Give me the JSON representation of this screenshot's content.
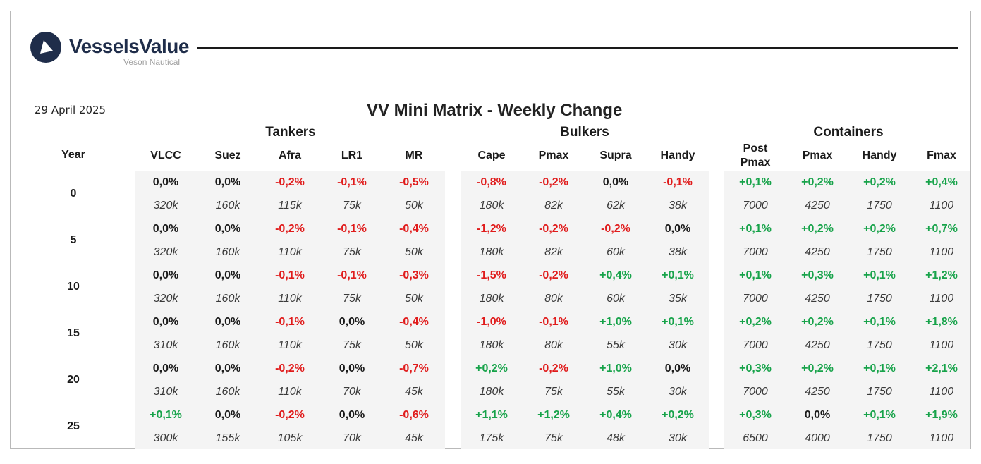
{
  "logo": {
    "name": "VesselsValue",
    "sub": "Veson Nautical"
  },
  "date": "29 April 2025",
  "title": "VV Mini Matrix - Weekly Change",
  "year_header": "Year",
  "colors": {
    "positive": "#17a34a",
    "negative": "#e01b1b",
    "neutral": "#1a1a1a",
    "panel": "#f4f4f4",
    "brand": "#1f2d4a"
  },
  "groups": [
    {
      "label": "Tankers",
      "columns": [
        "VLCC",
        "Suez",
        "Afra",
        "LR1",
        "MR"
      ]
    },
    {
      "label": "Bulkers",
      "columns": [
        "Cape",
        "Pmax",
        "Supra",
        "Handy"
      ]
    },
    {
      "label": "Containers",
      "columns": [
        "Post\nPmax",
        "Pmax",
        "Handy",
        "Fmax"
      ]
    }
  ],
  "rows": [
    {
      "year": "0",
      "changes": [
        "0,0%",
        "0,0%",
        "-0,2%",
        "-0,1%",
        "-0,5%",
        "-0,8%",
        "-0,2%",
        "0,0%",
        "-0,1%",
        "+0,1%",
        "+0,2%",
        "+0,2%",
        "+0,4%"
      ],
      "sizes": [
        "320k",
        "160k",
        "115k",
        "75k",
        "50k",
        "180k",
        "82k",
        "62k",
        "38k",
        "7000",
        "4250",
        "1750",
        "1100"
      ]
    },
    {
      "year": "5",
      "changes": [
        "0,0%",
        "0,0%",
        "-0,2%",
        "-0,1%",
        "-0,4%",
        "-1,2%",
        "-0,2%",
        "-0,2%",
        "0,0%",
        "+0,1%",
        "+0,2%",
        "+0,2%",
        "+0,7%"
      ],
      "sizes": [
        "320k",
        "160k",
        "110k",
        "75k",
        "50k",
        "180k",
        "82k",
        "60k",
        "38k",
        "7000",
        "4250",
        "1750",
        "1100"
      ]
    },
    {
      "year": "10",
      "changes": [
        "0,0%",
        "0,0%",
        "-0,1%",
        "-0,1%",
        "-0,3%",
        "-1,5%",
        "-0,2%",
        "+0,4%",
        "+0,1%",
        "+0,1%",
        "+0,3%",
        "+0,1%",
        "+1,2%"
      ],
      "sizes": [
        "320k",
        "160k",
        "110k",
        "75k",
        "50k",
        "180k",
        "80k",
        "60k",
        "35k",
        "7000",
        "4250",
        "1750",
        "1100"
      ]
    },
    {
      "year": "15",
      "changes": [
        "0,0%",
        "0,0%",
        "-0,1%",
        "0,0%",
        "-0,4%",
        "-1,0%",
        "-0,1%",
        "+1,0%",
        "+0,1%",
        "+0,2%",
        "+0,2%",
        "+0,1%",
        "+1,8%"
      ],
      "sizes": [
        "310k",
        "160k",
        "110k",
        "75k",
        "50k",
        "180k",
        "80k",
        "55k",
        "30k",
        "7000",
        "4250",
        "1750",
        "1100"
      ]
    },
    {
      "year": "20",
      "changes": [
        "0,0%",
        "0,0%",
        "-0,2%",
        "0,0%",
        "-0,7%",
        "+0,2%",
        "-0,2%",
        "+1,0%",
        "0,0%",
        "+0,3%",
        "+0,2%",
        "+0,1%",
        "+2,1%"
      ],
      "sizes": [
        "310k",
        "160k",
        "110k",
        "70k",
        "45k",
        "180k",
        "75k",
        "55k",
        "30k",
        "7000",
        "4250",
        "1750",
        "1100"
      ]
    },
    {
      "year": "25",
      "changes": [
        "+0,1%",
        "0,0%",
        "-0,2%",
        "0,0%",
        "-0,6%",
        "+1,1%",
        "+1,2%",
        "+0,4%",
        "+0,2%",
        "+0,3%",
        "0,0%",
        "+0,1%",
        "+1,9%"
      ],
      "sizes": [
        "300k",
        "155k",
        "105k",
        "70k",
        "45k",
        "175k",
        "75k",
        "48k",
        "30k",
        "6500",
        "4000",
        "1750",
        "1100"
      ]
    }
  ]
}
